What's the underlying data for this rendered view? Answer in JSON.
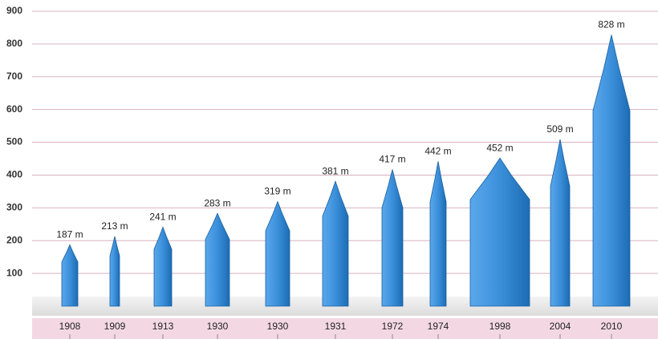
{
  "chart_data": {
    "type": "building",
    "categories": [
      "1908",
      "1909",
      "1913",
      "1930",
      "1930",
      "1931",
      "1972",
      "1974",
      "1998",
      "2004",
      "2010"
    ],
    "values": [
      187,
      213,
      241,
      283,
      319,
      381,
      417,
      442,
      452,
      509,
      828
    ],
    "value_labels": [
      "187 m",
      "213 m",
      "241 m",
      "283 m",
      "319 m",
      "381 m",
      "417 m",
      "442 m",
      "452 m",
      "509 m",
      "828 m"
    ],
    "color": "#3b8fda",
    "ylim": [
      0,
      900
    ],
    "yticks": [
      100,
      200,
      300,
      400,
      500,
      600,
      700,
      800,
      900
    ],
    "grid": true
  }
}
